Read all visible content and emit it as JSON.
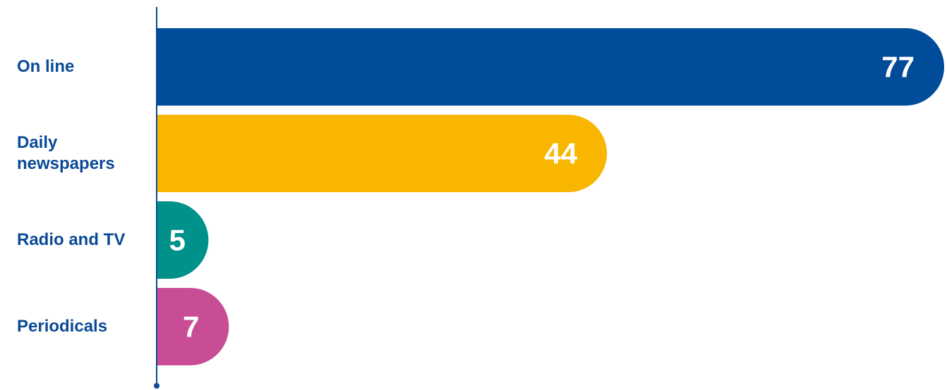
{
  "chart_data": {
    "type": "bar",
    "orientation": "horizontal",
    "categories": [
      "On line",
      "Daily newspapers",
      "Radio and TV",
      "Periodicals"
    ],
    "values": [
      77,
      44,
      5,
      7
    ],
    "colors": [
      "#004c9a",
      "#f9b600",
      "#00918a",
      "#c94d95"
    ],
    "xlim": [
      0,
      77
    ]
  }
}
